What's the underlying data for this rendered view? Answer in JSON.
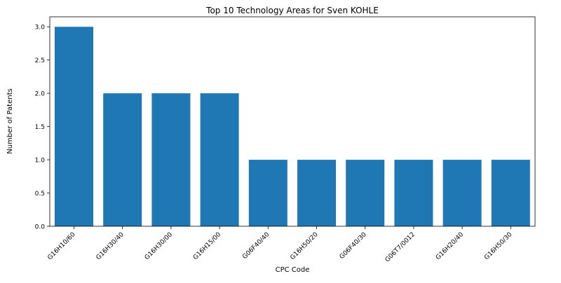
{
  "chart_data": {
    "type": "bar",
    "title": "Top 10 Technology Areas for Sven KOHLE",
    "xlabel": "CPC Code",
    "ylabel": "Number of Patents",
    "categories": [
      "G16H10/60",
      "G16H30/40",
      "G16H30/00",
      "G16H15/00",
      "G06F40/40",
      "G16H50/20",
      "G06F40/30",
      "G06T7/0012",
      "G16H20/40",
      "G16H50/30"
    ],
    "values": [
      3,
      2,
      2,
      2,
      1,
      1,
      1,
      1,
      1,
      1
    ],
    "yticks": [
      "0.0",
      "0.5",
      "1.0",
      "1.5",
      "2.0",
      "2.5",
      "3.0"
    ],
    "ylim": [
      0,
      3.15
    ],
    "grid": false,
    "bar_color": "#1f77b4"
  }
}
